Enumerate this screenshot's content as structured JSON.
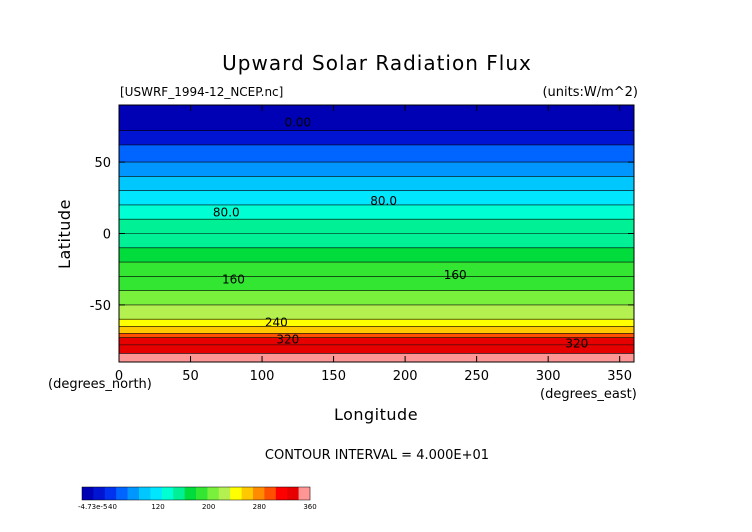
{
  "chart_data": {
    "type": "heatmap",
    "title": "Upward Solar Radiation Flux",
    "subtitle_left": "[USWRF_1994-12_NCEP.nc]",
    "subtitle_right": "(units:W/m^2)",
    "xlabel": "Longitude",
    "ylabel": "Latitude",
    "x_unit_label": "(degrees_east)",
    "y_unit_label": "(degrees_north)",
    "xlim": [
      0,
      360
    ],
    "ylim": [
      -90,
      90
    ],
    "x_ticks": [
      0,
      50,
      100,
      150,
      200,
      250,
      300,
      350
    ],
    "y_ticks": [
      -50,
      0,
      50
    ],
    "contour_interval_text": "CONTOUR INTERVAL = 4.000E+01",
    "contour_labels": [
      {
        "text": "0.00",
        "lon": 125,
        "lat": 75
      },
      {
        "text": "80.0",
        "lon": 75,
        "lat": 12
      },
      {
        "text": "80.0",
        "lon": 185,
        "lat": 20
      },
      {
        "text": "160",
        "lon": 80,
        "lat": -35
      },
      {
        "text": "160",
        "lon": 235,
        "lat": -32
      },
      {
        "text": "240",
        "lon": 110,
        "lat": -65
      },
      {
        "text": "320",
        "lon": 118,
        "lat": -77
      },
      {
        "text": "320",
        "lon": 320,
        "lat": -80
      }
    ],
    "colorbar": {
      "tick_labels": [
        "-4.73e-5",
        "40",
        "120",
        "200",
        "280",
        "360"
      ],
      "tick_values": [
        0,
        40,
        120,
        200,
        280,
        360
      ],
      "colors": [
        "#0000b4",
        "#0014d2",
        "#0032f0",
        "#0064ff",
        "#0096ff",
        "#00c8ff",
        "#00e6ff",
        "#00ffd2",
        "#00f096",
        "#00dc3c",
        "#32e632",
        "#78f03c",
        "#b4f050",
        "#ffff00",
        "#ffc800",
        "#ff8c00",
        "#ff5000",
        "#ff0000",
        "#e60000",
        "#ff9696"
      ]
    },
    "zonal_profile": [
      {
        "lat_min": 72,
        "lat_max": 90,
        "value": 0
      },
      {
        "lat_min": 62,
        "lat_max": 72,
        "value": 25
      },
      {
        "lat_min": 50,
        "lat_max": 62,
        "value": 60
      },
      {
        "lat_min": 40,
        "lat_max": 50,
        "value": 85
      },
      {
        "lat_min": 30,
        "lat_max": 40,
        "value": 100
      },
      {
        "lat_min": 20,
        "lat_max": 30,
        "value": 115
      },
      {
        "lat_min": 10,
        "lat_max": 20,
        "value": 135
      },
      {
        "lat_min": 0,
        "lat_max": 10,
        "value": 150
      },
      {
        "lat_min": -10,
        "lat_max": 0,
        "value": 160
      },
      {
        "lat_min": -20,
        "lat_max": -10,
        "value": 170
      },
      {
        "lat_min": -30,
        "lat_max": -20,
        "value": 185
      },
      {
        "lat_min": -40,
        "lat_max": -30,
        "value": 195
      },
      {
        "lat_min": -50,
        "lat_max": -40,
        "value": 210
      },
      {
        "lat_min": -60,
        "lat_max": -50,
        "value": 220
      },
      {
        "lat_min": -65,
        "lat_max": -60,
        "value": 240
      },
      {
        "lat_min": -70,
        "lat_max": -65,
        "value": 265
      },
      {
        "lat_min": -73,
        "lat_max": -70,
        "value": 300
      },
      {
        "lat_min": -78,
        "lat_max": -73,
        "value": 330
      },
      {
        "lat_min": -84,
        "lat_max": -78,
        "value": 340
      },
      {
        "lat_min": -90,
        "lat_max": -84,
        "value": 360
      }
    ]
  }
}
